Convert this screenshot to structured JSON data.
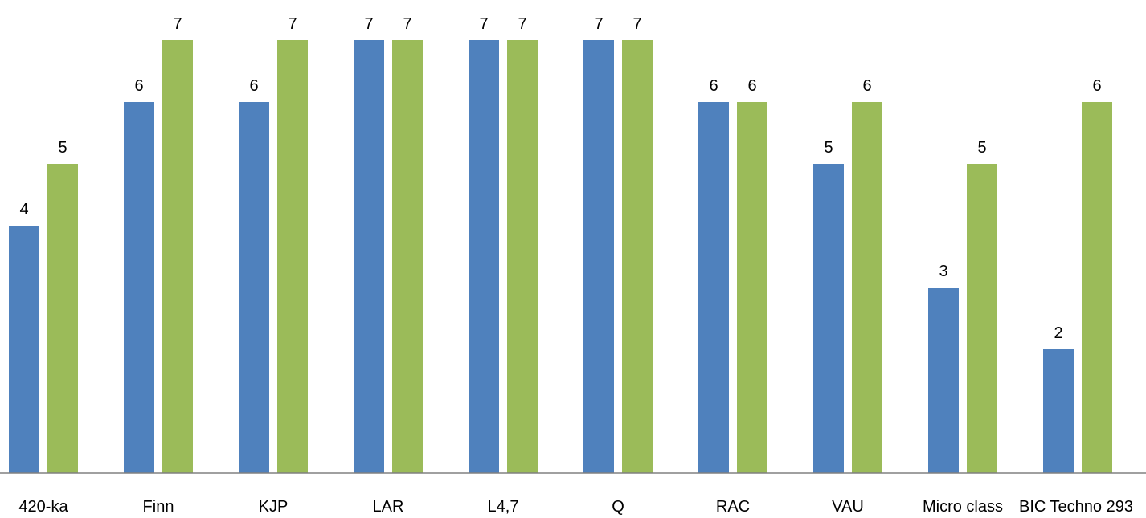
{
  "chart_data": {
    "type": "bar",
    "title": "",
    "xlabel": "",
    "ylabel": "",
    "ylim": [
      0,
      7
    ],
    "grid": false,
    "legend": "none",
    "categories": [
      "420-ka",
      "Finn",
      "KJP",
      "LAR",
      "L4,7",
      "Q",
      "RAC",
      "VAU",
      "Micro class",
      "BIC Techno 293"
    ],
    "series": [
      {
        "color": "#4F81BD",
        "values": [
          4,
          6,
          6,
          7,
          7,
          7,
          6,
          5,
          3,
          2
        ]
      },
      {
        "color": "#9BBB59",
        "values": [
          5,
          7,
          7,
          7,
          7,
          7,
          6,
          6,
          5,
          6
        ]
      }
    ]
  }
}
